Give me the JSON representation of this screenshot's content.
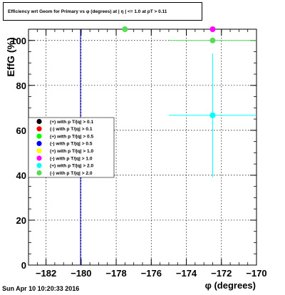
{
  "title": "Efficiency wrt Geom for Primary vs φ (degrees) at | η | <= 1.0 at pT > 0.11",
  "footer": "Sun Apr 10 10:20:33 2016",
  "chart_data": {
    "type": "scatter",
    "xlabel": "φ (degrees)",
    "ylabel": "EffG (%)",
    "xlim": [
      -183,
      -170
    ],
    "ylim": [
      0,
      105
    ],
    "xticks": [
      -182,
      -180,
      -178,
      -176,
      -174,
      -172,
      -170
    ],
    "yticks": [
      0,
      20,
      40,
      60,
      80,
      100
    ],
    "grid": true,
    "legend_position": "left-middle",
    "series": [
      {
        "name": "(+) with p T/|q| > 0.1",
        "color": "#000000",
        "points": []
      },
      {
        "name": "(-) with p T/|q| > 0.1",
        "color": "#ff0000",
        "points": []
      },
      {
        "name": "(+) with p T/|q| > 0.5",
        "color": "#00ff00",
        "points": []
      },
      {
        "name": "(-) with p T/|q| > 0.5",
        "color": "#0000ff",
        "points": []
      },
      {
        "name": "(+) with p T/|q| > 1.0",
        "color": "#ffff00",
        "points": []
      },
      {
        "name": "(-) with p T/|q| > 1.0",
        "color": "#ff00ff",
        "points": [
          {
            "x": -172.5,
            "y": 105
          }
        ]
      },
      {
        "name": "(+) with p T/|q| > 2.0",
        "color": "#00ffff",
        "points": [
          {
            "x": -172.5,
            "y": 66.7,
            "xerr": 2.5,
            "yerr": 27.5
          }
        ]
      },
      {
        "name": "(-) with p T/|q| > 2.0",
        "color": "#55dd55",
        "points": [
          {
            "x": -177.5,
            "y": 105
          },
          {
            "x": -172.5,
            "y": 100,
            "xerr": 2.5
          }
        ]
      }
    ]
  }
}
